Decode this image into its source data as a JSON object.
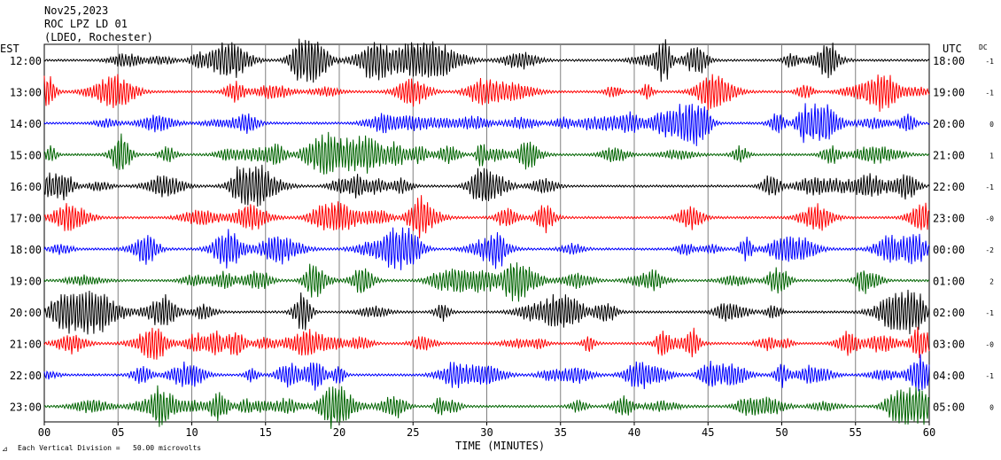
{
  "header": {
    "date": "Nov25,2023",
    "station": "ROC LPZ LD 01",
    "network": "(LDEO, Rochester)"
  },
  "left_tz": "EST",
  "right_tz": "UTC",
  "dc_header": "DC",
  "footer": {
    "x_title": "TIME (MINUTES)",
    "note": "Each Vertical Division =   50.00 microvolts"
  },
  "chart_data": {
    "type": "line",
    "title": "",
    "xlabel": "TIME (MINUTES)",
    "ylabel": "",
    "xlim": [
      0,
      60
    ],
    "x_ticks": [
      "00",
      "05",
      "10",
      "15",
      "20",
      "25",
      "30",
      "35",
      "40",
      "45",
      "50",
      "55",
      "60"
    ],
    "grid": "vertical lines every 5 minutes",
    "series": [
      {
        "left": "12:00",
        "right": "18:00",
        "dc": "-1",
        "color": "#000000"
      },
      {
        "left": "13:00",
        "right": "19:00",
        "dc": "-1",
        "color": "#ff0000"
      },
      {
        "left": "14:00",
        "right": "20:00",
        "dc": "0",
        "color": "#0000ff"
      },
      {
        "left": "15:00",
        "right": "21:00",
        "dc": "1",
        "color": "#006400"
      },
      {
        "left": "16:00",
        "right": "22:00",
        "dc": "-1",
        "color": "#000000"
      },
      {
        "left": "17:00",
        "right": "23:00",
        "dc": "-0",
        "color": "#ff0000"
      },
      {
        "left": "18:00",
        "right": "00:00",
        "dc": "-2",
        "color": "#0000ff"
      },
      {
        "left": "19:00",
        "right": "01:00",
        "dc": "2",
        "color": "#006400"
      },
      {
        "left": "20:00",
        "right": "02:00",
        "dc": "-1",
        "color": "#000000"
      },
      {
        "left": "21:00",
        "right": "03:00",
        "dc": "-0",
        "color": "#ff0000"
      },
      {
        "left": "22:00",
        "right": "04:00",
        "dc": "-1",
        "color": "#0000ff"
      },
      {
        "left": "23:00",
        "right": "05:00",
        "dc": "0",
        "color": "#006400"
      }
    ]
  }
}
